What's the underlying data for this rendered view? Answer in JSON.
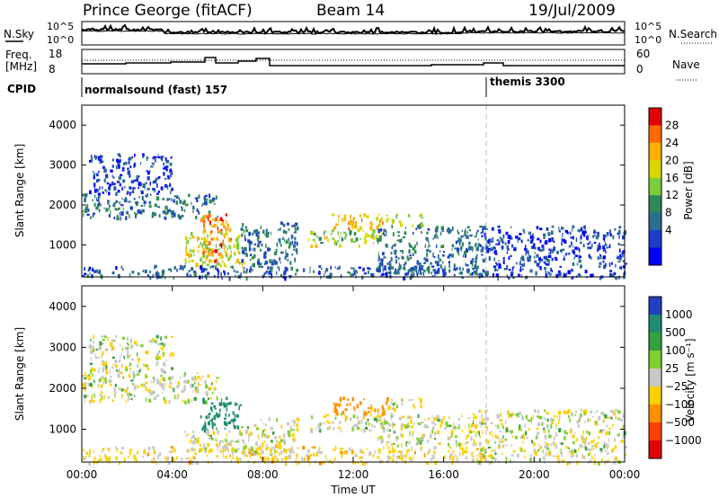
{
  "header": {
    "station": "Prince George (fitACF)",
    "beam": "Beam 14",
    "date": "19/Jul/2009"
  },
  "sky_panel": {
    "left_label": "N.Sky",
    "right_label": "N.Search",
    "ticks_left": [
      "10^5",
      "10^0"
    ],
    "ticks_right": [
      "10^5",
      "10^0"
    ]
  },
  "freq_panel": {
    "left_label_1": "Freq.",
    "left_label_2": "[MHz]",
    "right_label": "Nave",
    "ticks_left": [
      "18",
      "8"
    ],
    "ticks_right": [
      "60",
      "0"
    ]
  },
  "cpid": {
    "label": "CPID",
    "mode_1": "normalsound (fast) 157",
    "mode_2": "themis 3300"
  },
  "chart_data": [
    {
      "type": "heatmap",
      "name": "power",
      "ylabel": "Slant Range [km]",
      "xlabel": "",
      "ylim": [
        200,
        4500
      ],
      "xlim": [
        0,
        24
      ],
      "yticks": [
        1000,
        2000,
        3000,
        4000
      ],
      "colorbar": {
        "label": "Power [dB]",
        "ticks": [
          "28",
          "24",
          "20",
          "16",
          "12",
          "8",
          "4"
        ],
        "colors": [
          "#e00000",
          "#ff6a00",
          "#ffb000",
          "#d8d800",
          "#7ccc3c",
          "#2e8b57",
          "#2a6e90",
          "#1a3ec8",
          "#0000ff"
        ]
      },
      "regions": [
        {
          "t0": 0.0,
          "t1": 6.0,
          "r0": 1700,
          "r1": 2300,
          "level": 8
        },
        {
          "t0": 0.3,
          "t1": 4.0,
          "r0": 2300,
          "r1": 3300,
          "level": 4
        },
        {
          "t0": 5.2,
          "t1": 6.6,
          "r0": 600,
          "r1": 1800,
          "level": 26
        },
        {
          "t0": 4.5,
          "t1": 7.2,
          "r0": 500,
          "r1": 1400,
          "level": 18
        },
        {
          "t0": 7.0,
          "t1": 9.5,
          "r0": 400,
          "r1": 1600,
          "level": 8
        },
        {
          "t0": 10.0,
          "t1": 13.5,
          "r0": 1000,
          "r1": 1400,
          "level": 16
        },
        {
          "t0": 11.0,
          "t1": 13.5,
          "r0": 1400,
          "r1": 1800,
          "level": 22
        },
        {
          "t0": 13.5,
          "t1": 15.0,
          "r0": 1500,
          "r1": 1800,
          "level": 16
        },
        {
          "t0": 13.0,
          "t1": 17.5,
          "r0": 300,
          "r1": 1500,
          "level": 8
        },
        {
          "t0": 0.0,
          "t1": 18.0,
          "r0": 200,
          "r1": 500,
          "level": 6
        },
        {
          "t0": 17.5,
          "t1": 24.0,
          "r0": 200,
          "r1": 1500,
          "level": 4
        }
      ]
    },
    {
      "type": "heatmap",
      "name": "velocity",
      "ylabel": "Slant Range [km]",
      "xlabel": "Time UT",
      "ylim": [
        200,
        4500
      ],
      "xlim": [
        0,
        24
      ],
      "yticks": [
        1000,
        2000,
        3000,
        4000
      ],
      "xticks": [
        "00:00",
        "04:00",
        "08:00",
        "12:00",
        "16:00",
        "20:00",
        "00:00"
      ],
      "colorbar": {
        "label": "Velocity [m s⁻¹]",
        "ticks": [
          "1000",
          "500",
          "100",
          "25",
          "−25",
          "−100",
          "−500",
          "−1000"
        ],
        "colors": [
          "#2040c0",
          "#1e8c6e",
          "#35a040",
          "#7fd030",
          "#c8c8c8",
          "#ffd000",
          "#ff9000",
          "#ff4000",
          "#e00000"
        ]
      },
      "regions": [
        {
          "t0": 0.0,
          "t1": 6.0,
          "r0": 1700,
          "r1": 2400,
          "level": 0
        },
        {
          "t0": 0.3,
          "t1": 4.0,
          "r0": 2400,
          "r1": 3300,
          "level": 0
        },
        {
          "t0": 5.2,
          "t1": 7.0,
          "r0": 1000,
          "r1": 1800,
          "level": 150
        },
        {
          "t0": 4.5,
          "t1": 7.2,
          "r0": 500,
          "r1": 1000,
          "level": 0
        },
        {
          "t0": 7.0,
          "t1": 9.5,
          "r0": 400,
          "r1": 1300,
          "level": 0
        },
        {
          "t0": 10.0,
          "t1": 13.5,
          "r0": 1000,
          "r1": 1400,
          "level": 0
        },
        {
          "t0": 11.0,
          "t1": 13.5,
          "r0": 1400,
          "r1": 1800,
          "level": -150
        },
        {
          "t0": 13.5,
          "t1": 15.0,
          "r0": 1500,
          "r1": 1800,
          "level": 0
        },
        {
          "t0": 13.0,
          "t1": 17.5,
          "r0": 600,
          "r1": 1400,
          "level": 0
        },
        {
          "t0": 0.0,
          "t1": 18.0,
          "r0": 200,
          "r1": 600,
          "level": -50
        },
        {
          "t0": 17.5,
          "t1": 24.0,
          "r0": 200,
          "r1": 1500,
          "level": 0
        }
      ]
    }
  ]
}
